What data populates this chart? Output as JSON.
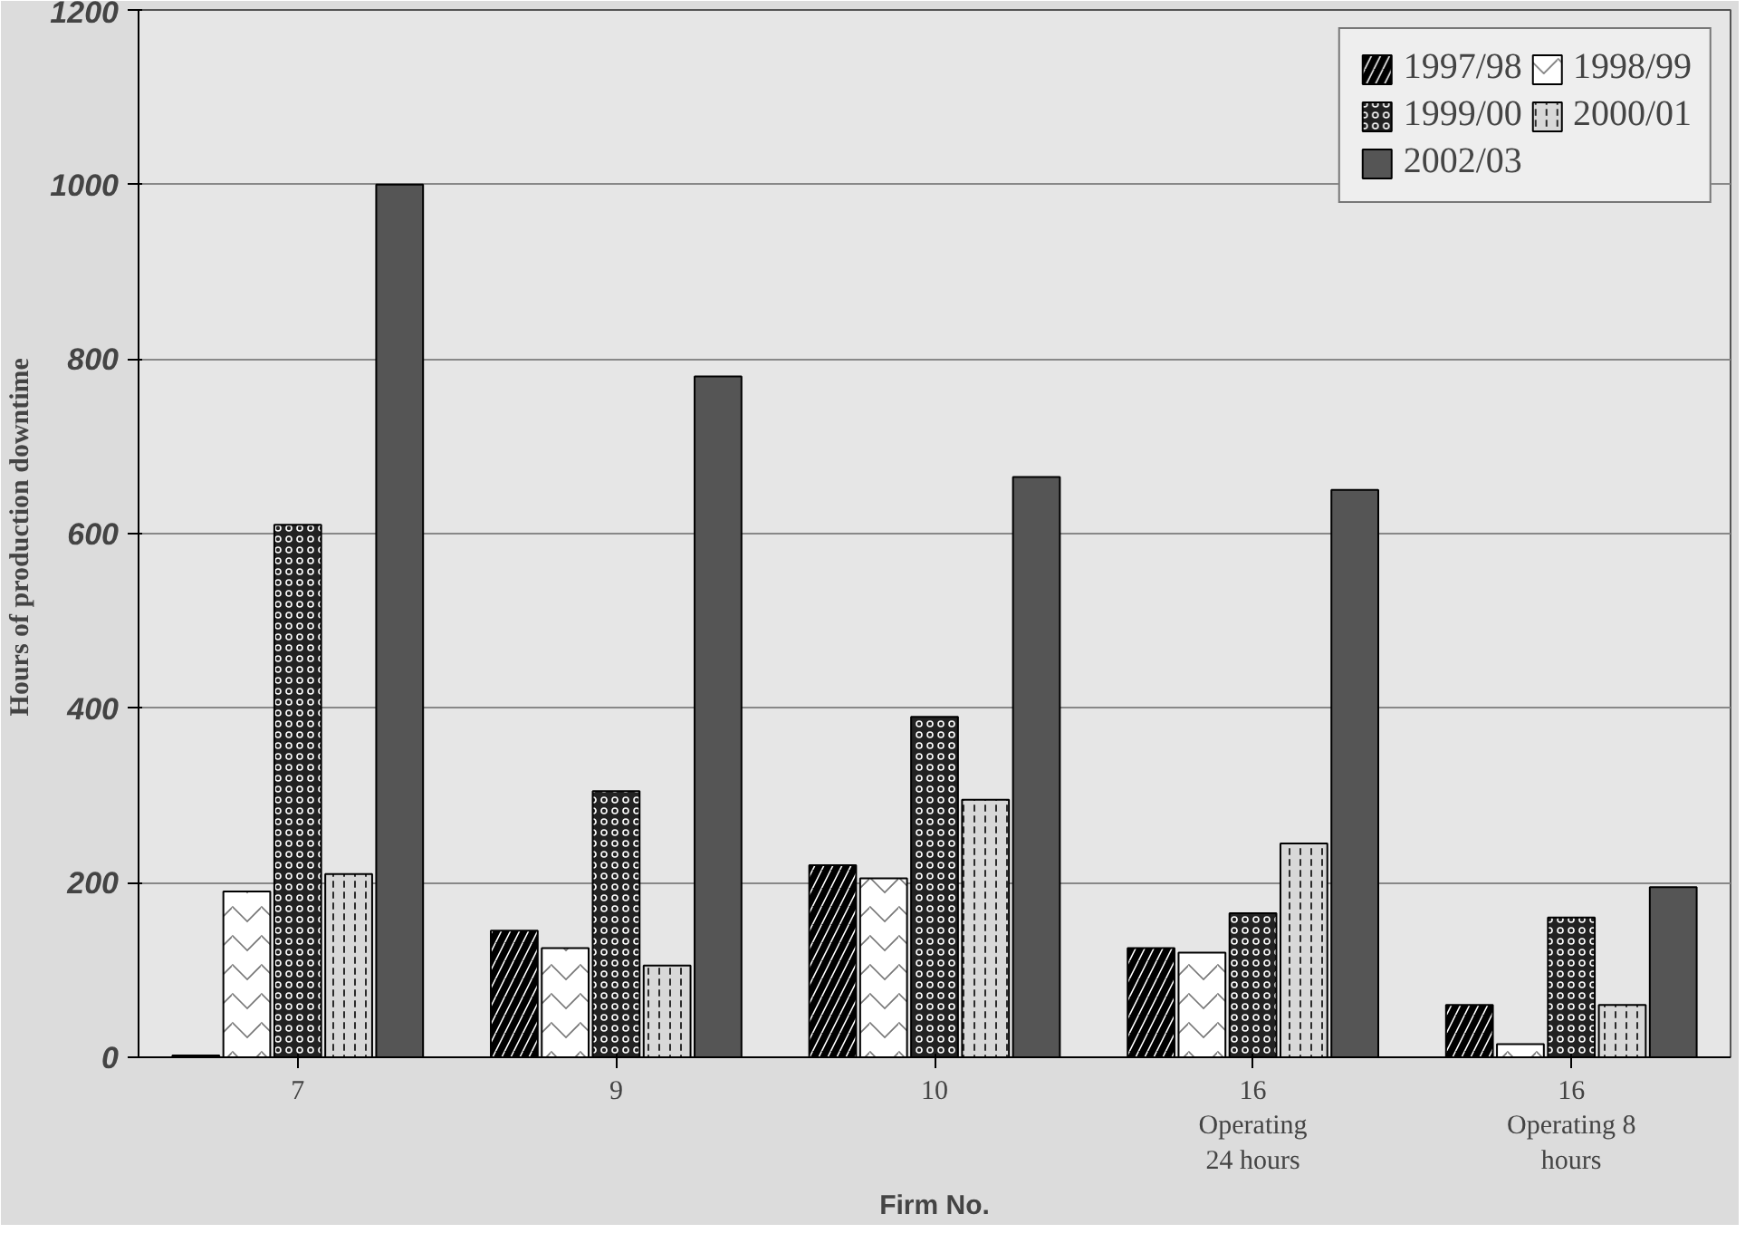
{
  "chart_data": {
    "type": "bar",
    "xlabel": "Firm No.",
    "ylabel": "Hours of  production downtime",
    "categories": [
      "7",
      "9",
      "10",
      "16\nOperating\n24 hours",
      "16\nOperating 8\nhours"
    ],
    "series": [
      {
        "name": "1997/98",
        "color": "#000000",
        "values": [
          2,
          145,
          220,
          125,
          60
        ]
      },
      {
        "name": "1998/99",
        "color": "#ffffff",
        "values": [
          190,
          125,
          205,
          120,
          15
        ]
      },
      {
        "name": "1999/00",
        "color": "#222222",
        "values": [
          610,
          305,
          390,
          165,
          160
        ]
      },
      {
        "name": "2000/01",
        "color": "#d8d8d8",
        "values": [
          210,
          105,
          295,
          245,
          60
        ]
      },
      {
        "name": "2002/03",
        "color": "#555555",
        "values": [
          1000,
          780,
          665,
          650,
          195
        ]
      }
    ],
    "ylim": [
      0,
      1200
    ],
    "yticks": [
      0,
      200,
      400,
      600,
      800,
      1000,
      1200
    ],
    "grid": "y",
    "legend": "top right"
  }
}
